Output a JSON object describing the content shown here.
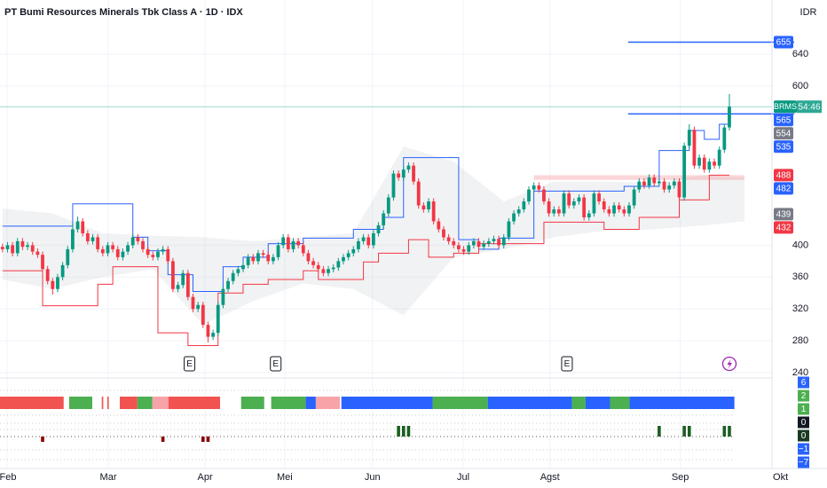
{
  "chart_data": {
    "type": "candlestick",
    "title": "PT Bumi Resources Minerals Tbk Class A · 1D · IDX",
    "currency": "IDR",
    "up_color": "#089981",
    "down_color": "#f23645",
    "xlim": [
      -0.5,
      153.5
    ],
    "ylim": [
      234.4,
      708
    ],
    "yticks": [
      240,
      280,
      320,
      360,
      400,
      600,
      640
    ],
    "grid": true,
    "xticks": [
      {
        "value": 0.9,
        "label": "Feb"
      },
      {
        "value": 21.1,
        "label": "Mar"
      },
      {
        "value": 40.4,
        "label": "Apr"
      },
      {
        "value": 56.3,
        "label": "Mei"
      },
      {
        "value": 73.8,
        "label": "Jun"
      },
      {
        "value": 91.9,
        "label": "Jul"
      },
      {
        "value": 109.2,
        "label": "Agst"
      },
      {
        "value": 135.2,
        "label": "Sep"
      },
      {
        "value": 155.2,
        "label": "Okt"
      }
    ],
    "ohlc": [
      [
        398,
        402,
        391,
        395
      ],
      [
        395,
        404,
        391,
        400
      ],
      [
        400,
        404,
        386,
        390
      ],
      [
        390,
        409,
        386,
        405
      ],
      [
        405,
        409,
        394,
        398
      ],
      [
        398,
        404,
        394,
        400
      ],
      [
        400,
        404,
        388,
        392
      ],
      [
        392,
        396,
        384,
        388
      ],
      [
        388,
        392,
        366,
        370
      ],
      [
        370,
        374,
        351,
        355
      ],
      [
        355,
        359,
        338,
        345
      ],
      [
        345,
        364,
        341,
        360
      ],
      [
        360,
        379,
        356,
        375
      ],
      [
        375,
        399,
        371,
        395
      ],
      [
        395,
        428,
        391,
        420
      ],
      [
        420,
        436,
        416,
        430
      ],
      [
        430,
        434,
        411,
        415
      ],
      [
        415,
        419,
        401,
        405
      ],
      [
        405,
        414,
        401,
        410
      ],
      [
        410,
        414,
        391,
        395
      ],
      [
        395,
        399,
        386,
        390
      ],
      [
        390,
        404,
        386,
        400
      ],
      [
        400,
        404,
        391,
        395
      ],
      [
        395,
        399,
        381,
        385
      ],
      [
        385,
        396,
        381,
        392
      ],
      [
        392,
        404,
        388,
        400
      ],
      [
        400,
        414,
        396,
        410
      ],
      [
        410,
        414,
        401,
        405
      ],
      [
        405,
        409,
        391,
        395
      ],
      [
        395,
        399,
        384,
        388
      ],
      [
        388,
        392,
        381,
        385
      ],
      [
        385,
        396,
        381,
        392
      ],
      [
        392,
        399,
        388,
        395
      ],
      [
        395,
        399,
        376,
        380
      ],
      [
        380,
        384,
        341,
        345
      ],
      [
        345,
        354,
        341,
        350
      ],
      [
        350,
        369,
        346,
        365
      ],
      [
        365,
        369,
        331,
        335
      ],
      [
        335,
        339,
        316,
        320
      ],
      [
        320,
        329,
        316,
        325
      ],
      [
        325,
        329,
        296,
        300
      ],
      [
        300,
        304,
        278,
        285
      ],
      [
        285,
        294,
        281,
        290
      ],
      [
        290,
        329,
        286,
        325
      ],
      [
        325,
        349,
        321,
        345
      ],
      [
        345,
        359,
        341,
        355
      ],
      [
        355,
        369,
        351,
        365
      ],
      [
        365,
        374,
        361,
        370
      ],
      [
        370,
        379,
        366,
        375
      ],
      [
        375,
        389,
        371,
        385
      ],
      [
        385,
        389,
        376,
        380
      ],
      [
        380,
        394,
        376,
        390
      ],
      [
        390,
        394,
        384,
        388
      ],
      [
        388,
        392,
        376,
        380
      ],
      [
        380,
        389,
        376,
        385
      ],
      [
        385,
        404,
        381,
        400
      ],
      [
        400,
        414,
        396,
        410
      ],
      [
        410,
        414,
        391,
        395
      ],
      [
        395,
        409,
        391,
        405
      ],
      [
        405,
        409,
        396,
        400
      ],
      [
        400,
        404,
        386,
        390
      ],
      [
        390,
        394,
        376,
        380
      ],
      [
        380,
        384,
        371,
        375
      ],
      [
        375,
        379,
        366,
        370
      ],
      [
        370,
        374,
        361,
        365
      ],
      [
        365,
        374,
        361,
        370
      ],
      [
        370,
        376,
        366,
        372
      ],
      [
        372,
        384,
        368,
        380
      ],
      [
        380,
        389,
        376,
        385
      ],
      [
        385,
        394,
        381,
        390
      ],
      [
        390,
        399,
        386,
        395
      ],
      [
        395,
        409,
        391,
        405
      ],
      [
        405,
        414,
        401,
        410
      ],
      [
        410,
        414,
        396,
        400
      ],
      [
        400,
        419,
        396,
        415
      ],
      [
        415,
        429,
        411,
        425
      ],
      [
        425,
        444,
        421,
        440
      ],
      [
        440,
        464,
        436,
        460
      ],
      [
        460,
        494,
        456,
        490
      ],
      [
        490,
        494,
        481,
        485
      ],
      [
        485,
        499,
        481,
        495
      ],
      [
        495,
        504,
        491,
        500
      ],
      [
        500,
        504,
        476,
        480
      ],
      [
        480,
        484,
        446,
        450
      ],
      [
        450,
        454,
        441,
        445
      ],
      [
        445,
        459,
        441,
        455
      ],
      [
        455,
        459,
        426,
        430
      ],
      [
        430,
        434,
        416,
        420
      ],
      [
        420,
        424,
        406,
        410
      ],
      [
        410,
        414,
        401,
        405
      ],
      [
        405,
        409,
        396,
        400
      ],
      [
        400,
        404,
        391,
        395
      ],
      [
        395,
        399,
        388,
        392
      ],
      [
        392,
        404,
        388,
        400
      ],
      [
        400,
        409,
        396,
        405
      ],
      [
        405,
        409,
        394,
        398
      ],
      [
        398,
        406,
        394,
        402
      ],
      [
        402,
        409,
        398,
        405
      ],
      [
        405,
        412,
        401,
        408
      ],
      [
        408,
        412,
        396,
        400
      ],
      [
        400,
        414,
        396,
        410
      ],
      [
        410,
        434,
        406,
        430
      ],
      [
        430,
        444,
        426,
        440
      ],
      [
        440,
        449,
        436,
        445
      ],
      [
        445,
        459,
        441,
        455
      ],
      [
        455,
        474,
        451,
        470
      ],
      [
        470,
        479,
        466,
        475
      ],
      [
        475,
        479,
        466,
        470
      ],
      [
        470,
        474,
        451,
        455
      ],
      [
        455,
        459,
        436,
        440
      ],
      [
        440,
        449,
        436,
        445
      ],
      [
        445,
        449,
        436,
        440
      ],
      [
        440,
        469,
        436,
        465
      ],
      [
        465,
        469,
        446,
        450
      ],
      [
        450,
        459,
        446,
        455
      ],
      [
        455,
        464,
        451,
        460
      ],
      [
        460,
        464,
        431,
        435
      ],
      [
        435,
        444,
        431,
        440
      ],
      [
        440,
        469,
        436,
        465
      ],
      [
        465,
        469,
        451,
        455
      ],
      [
        455,
        459,
        441,
        445
      ],
      [
        445,
        449,
        436,
        440
      ],
      [
        440,
        454,
        436,
        450
      ],
      [
        450,
        454,
        441,
        445
      ],
      [
        445,
        449,
        436,
        440
      ],
      [
        440,
        454,
        436,
        450
      ],
      [
        450,
        474,
        446,
        470
      ],
      [
        470,
        484,
        466,
        480
      ],
      [
        480,
        484,
        471,
        475
      ],
      [
        475,
        489,
        471,
        485
      ],
      [
        485,
        489,
        474,
        478
      ],
      [
        478,
        484,
        474,
        480
      ],
      [
        480,
        484,
        466,
        470
      ],
      [
        470,
        479,
        466,
        475
      ],
      [
        475,
        484,
        471,
        480
      ],
      [
        480,
        484,
        456,
        460
      ],
      [
        460,
        529,
        456,
        525
      ],
      [
        525,
        552,
        521,
        545
      ],
      [
        545,
        549,
        496,
        500
      ],
      [
        500,
        514,
        496,
        510
      ],
      [
        510,
        514,
        491,
        495
      ],
      [
        495,
        509,
        491,
        505
      ],
      [
        505,
        509,
        496,
        500
      ],
      [
        500,
        524,
        496,
        520
      ],
      [
        520,
        552,
        516,
        548
      ],
      [
        548,
        590,
        544,
        574
      ]
    ],
    "band": {
      "x": [
        0,
        10,
        20,
        30,
        40,
        50,
        60,
        70,
        80,
        90,
        100,
        110,
        120,
        130,
        140,
        148
      ],
      "upper": [
        446,
        440,
        415,
        412,
        410,
        405,
        410,
        415,
        524,
        505,
        455,
        480,
        480,
        478,
        488,
        485
      ],
      "lower": [
        357,
        345,
        360,
        370,
        300,
        330,
        352,
        345,
        312,
        385,
        395,
        410,
        418,
        420,
        425,
        430
      ],
      "color": "#b2b5be"
    },
    "upper_channel": {
      "x": [
        0,
        14,
        26,
        29,
        33,
        38,
        44,
        48,
        53,
        60,
        70,
        76,
        80,
        91,
        95,
        99,
        106,
        124,
        131,
        137,
        140,
        143
      ],
      "values": [
        424,
        452,
        410,
        393,
        363,
        342,
        373,
        385,
        402,
        409,
        420,
        435,
        510,
        407,
        395,
        409,
        468,
        474,
        519,
        544,
        533,
        552
      ],
      "color": "#2962ff"
    },
    "lower_channel": {
      "x": [
        0,
        8,
        19,
        22,
        31,
        37,
        43,
        48,
        53,
        60,
        63,
        72,
        75,
        81,
        85,
        90,
        95,
        108,
        120,
        127,
        135,
        141
      ],
      "values": [
        368,
        324,
        351,
        373,
        290,
        274,
        340,
        351,
        357,
        368,
        357,
        379,
        390,
        407,
        385,
        390,
        402,
        429,
        420,
        435,
        457,
        488
      ],
      "color": "#f23645"
    },
    "hlines": [
      {
        "value": 655,
        "from": 124.8,
        "color": "#2962ff"
      },
      {
        "value": 565,
        "from": 124.8,
        "color": "#2962ff"
      }
    ],
    "zone": {
      "low": 482,
      "high": 488,
      "from": 106,
      "to": 148,
      "color": "#f7a3a8"
    },
    "price_labels": [
      {
        "value": 655,
        "label": "655",
        "color": "#2962ff"
      },
      {
        "value": 574,
        "label": "BRMS",
        "countdown": "54:46",
        "color": "#089981"
      },
      {
        "value": 565,
        "label": "565",
        "color": "#2962ff"
      },
      {
        "value": 554,
        "label": "554",
        "color": "#787b86"
      },
      {
        "value": 535,
        "label": "535",
        "color": "#2962ff"
      },
      {
        "value": 488,
        "label": "488",
        "color": "#f23645"
      },
      {
        "value": 482,
        "label": "482",
        "color": "#2962ff"
      },
      {
        "value": 439,
        "label": "439",
        "color": "#787b86"
      },
      {
        "value": 432,
        "label": "432",
        "color": "#f23645"
      }
    ],
    "events": {
      "x": [
        37.3,
        54.5,
        112.6
      ],
      "labels": [
        "E",
        "E",
        "E"
      ]
    },
    "regime": [
      {
        "from": -0.5,
        "to": 12.2,
        "color": "#f05350"
      },
      {
        "from": 13.3,
        "to": 17.9,
        "color": "#4caf50"
      },
      {
        "from": 19.8,
        "to": 20.1,
        "color": "#f05350"
      },
      {
        "from": 20.9,
        "to": 21.2,
        "color": "#f05350"
      },
      {
        "from": 23.4,
        "to": 26.9,
        "color": "#f05350"
      },
      {
        "from": 26.9,
        "to": 29.9,
        "color": "#4caf50"
      },
      {
        "from": 29.9,
        "to": 33.1,
        "color": "#f7a3a8"
      },
      {
        "from": 33.1,
        "to": 43.4,
        "color": "#f05350"
      },
      {
        "from": 47.6,
        "to": 52.2,
        "color": "#4caf50"
      },
      {
        "from": 53.6,
        "to": 60.5,
        "color": "#4caf50"
      },
      {
        "from": 60.5,
        "to": 62.5,
        "color": "#2962ff"
      },
      {
        "from": 62.5,
        "to": 67.3,
        "color": "#f7a3a8"
      },
      {
        "from": 67.6,
        "to": 85.8,
        "color": "#2962ff"
      },
      {
        "from": 85.8,
        "to": 96.8,
        "color": "#4caf50"
      },
      {
        "from": 96.8,
        "to": 113.6,
        "color": "#2962ff"
      },
      {
        "from": 113.6,
        "to": 116.3,
        "color": "#4caf50"
      },
      {
        "from": 116.3,
        "to": 121.2,
        "color": "#2962ff"
      },
      {
        "from": 121.2,
        "to": 125.1,
        "color": "#4caf50"
      },
      {
        "from": 125.1,
        "to": 146,
        "color": "#2962ff"
      }
    ],
    "histogram": {
      "x": [
        8,
        32,
        40,
        41,
        79,
        80,
        81,
        131,
        136,
        137,
        144,
        145
      ],
      "values": [
        -1,
        -1,
        -1,
        -1,
        2,
        2,
        2,
        2,
        2,
        2,
        2,
        2
      ]
    },
    "indicator_labels": [
      {
        "value": 6,
        "label": "6",
        "color": "#2962ff"
      },
      {
        "value": 2,
        "label": "2",
        "color": "#4caf50"
      },
      {
        "value": 1,
        "label": "1",
        "color": "#4caf50"
      },
      {
        "value": 0,
        "label": "0",
        "color": "#131722"
      },
      {
        "value": 0,
        "label": "0",
        "color": "#1b3a24"
      },
      {
        "value": -1,
        "label": "−1",
        "color": "#2962ff"
      },
      {
        "value": -7,
        "label": "−7",
        "color": "#2962ff"
      }
    ]
  }
}
